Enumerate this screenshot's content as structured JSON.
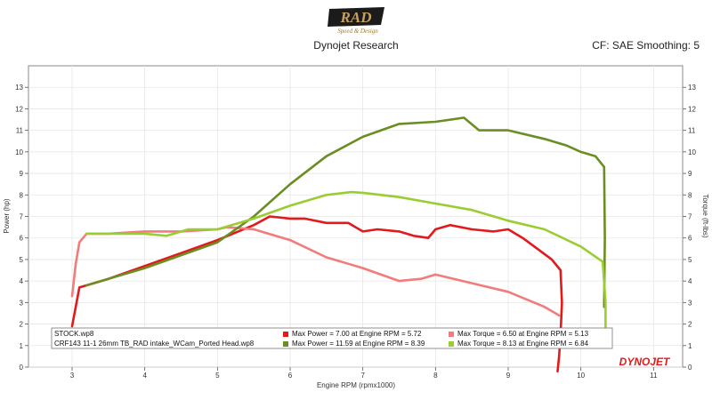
{
  "header": {
    "logo_text": "RAD",
    "logo_subtext": "Speed & Design",
    "title": "Dynojet Research",
    "cf": "CF: SAE Smoothing: 5"
  },
  "brand": {
    "watermark": "DYNOJET"
  },
  "colors": {
    "stock_power": "#e31a1c",
    "stock_torque": "#f27b7b",
    "mod_power": "#6b8e23",
    "mod_torque": "#9acd32"
  },
  "chart_data": {
    "type": "line",
    "xlabel": "Engine RPM (rpmx1000)",
    "ylabel_left": "Power (hp)",
    "ylabel_right": "Torque (ft-lbs)",
    "xlim": [
      2.4,
      11.4
    ],
    "ylim": [
      0,
      14
    ],
    "x_ticks": [
      3,
      4,
      5,
      6,
      7,
      8,
      9,
      10,
      11
    ],
    "y_ticks": [
      0,
      1,
      2,
      3,
      4,
      5,
      6,
      7,
      8,
      9,
      10,
      11,
      12,
      13
    ],
    "legend": {
      "runs": [
        "STOCK.wp8",
        "CRF143 11-1 26mm TB_RAD intake_WCam_Ported Head.wp8"
      ],
      "entries": [
        [
          "Max Power = 7.00 at Engine RPM = 5.72",
          "Max Torque = 6.50 at Engine RPM = 5.13"
        ],
        [
          "Max Power = 11.59 at Engine RPM = 8.39",
          "Max Torque = 8.13 at Engine RPM = 6.84"
        ]
      ]
    },
    "series": [
      {
        "key": "stock_power",
        "x": [
          3.0,
          3.1,
          3.5,
          4.0,
          4.5,
          5.0,
          5.5,
          5.72,
          6.0,
          6.2,
          6.5,
          6.8,
          7.0,
          7.2,
          7.5,
          7.7,
          7.9,
          8.0,
          8.2,
          8.5,
          8.8,
          9.0,
          9.2,
          9.4,
          9.6,
          9.72,
          9.74,
          9.72,
          9.7,
          9.68
        ],
        "y": [
          1.9,
          3.7,
          4.1,
          4.7,
          5.3,
          5.9,
          6.6,
          7.0,
          6.9,
          6.9,
          6.7,
          6.7,
          6.3,
          6.4,
          6.3,
          6.1,
          6.0,
          6.4,
          6.6,
          6.4,
          6.3,
          6.4,
          6.0,
          5.5,
          5.0,
          4.5,
          3.0,
          1.5,
          0.5,
          -0.2
        ]
      },
      {
        "key": "stock_torque",
        "x": [
          3.0,
          3.05,
          3.1,
          3.2,
          3.5,
          4.0,
          4.5,
          5.0,
          5.13,
          5.5,
          6.0,
          6.5,
          7.0,
          7.5,
          7.8,
          8.0,
          8.5,
          9.0,
          9.5,
          9.7
        ],
        "y": [
          3.3,
          4.8,
          5.8,
          6.2,
          6.2,
          6.3,
          6.3,
          6.4,
          6.5,
          6.4,
          5.9,
          5.1,
          4.6,
          4.0,
          4.1,
          4.3,
          3.9,
          3.5,
          2.8,
          2.4
        ]
      },
      {
        "key": "mod_power",
        "x": [
          3.2,
          3.5,
          4.0,
          4.5,
          5.0,
          5.5,
          6.0,
          6.5,
          7.0,
          7.5,
          8.0,
          8.39,
          8.6,
          9.0,
          9.5,
          9.8,
          10.0,
          10.2,
          10.32,
          10.33,
          10.32
        ],
        "y": [
          3.8,
          4.1,
          4.6,
          5.2,
          5.8,
          7.0,
          8.5,
          9.8,
          10.7,
          11.3,
          11.4,
          11.59,
          11.0,
          11.0,
          10.6,
          10.3,
          10.0,
          9.8,
          9.3,
          6.0,
          2.8
        ]
      },
      {
        "key": "mod_torque",
        "x": [
          3.2,
          3.5,
          4.0,
          4.3,
          4.6,
          5.0,
          5.5,
          6.0,
          6.5,
          6.84,
          7.0,
          7.5,
          8.0,
          8.5,
          9.0,
          9.5,
          10.0,
          10.3,
          10.34,
          10.34
        ],
        "y": [
          6.2,
          6.2,
          6.2,
          6.1,
          6.4,
          6.4,
          6.9,
          7.5,
          8.0,
          8.13,
          8.1,
          7.9,
          7.6,
          7.3,
          6.8,
          6.4,
          5.6,
          4.9,
          3.0,
          1.5
        ]
      }
    ]
  }
}
